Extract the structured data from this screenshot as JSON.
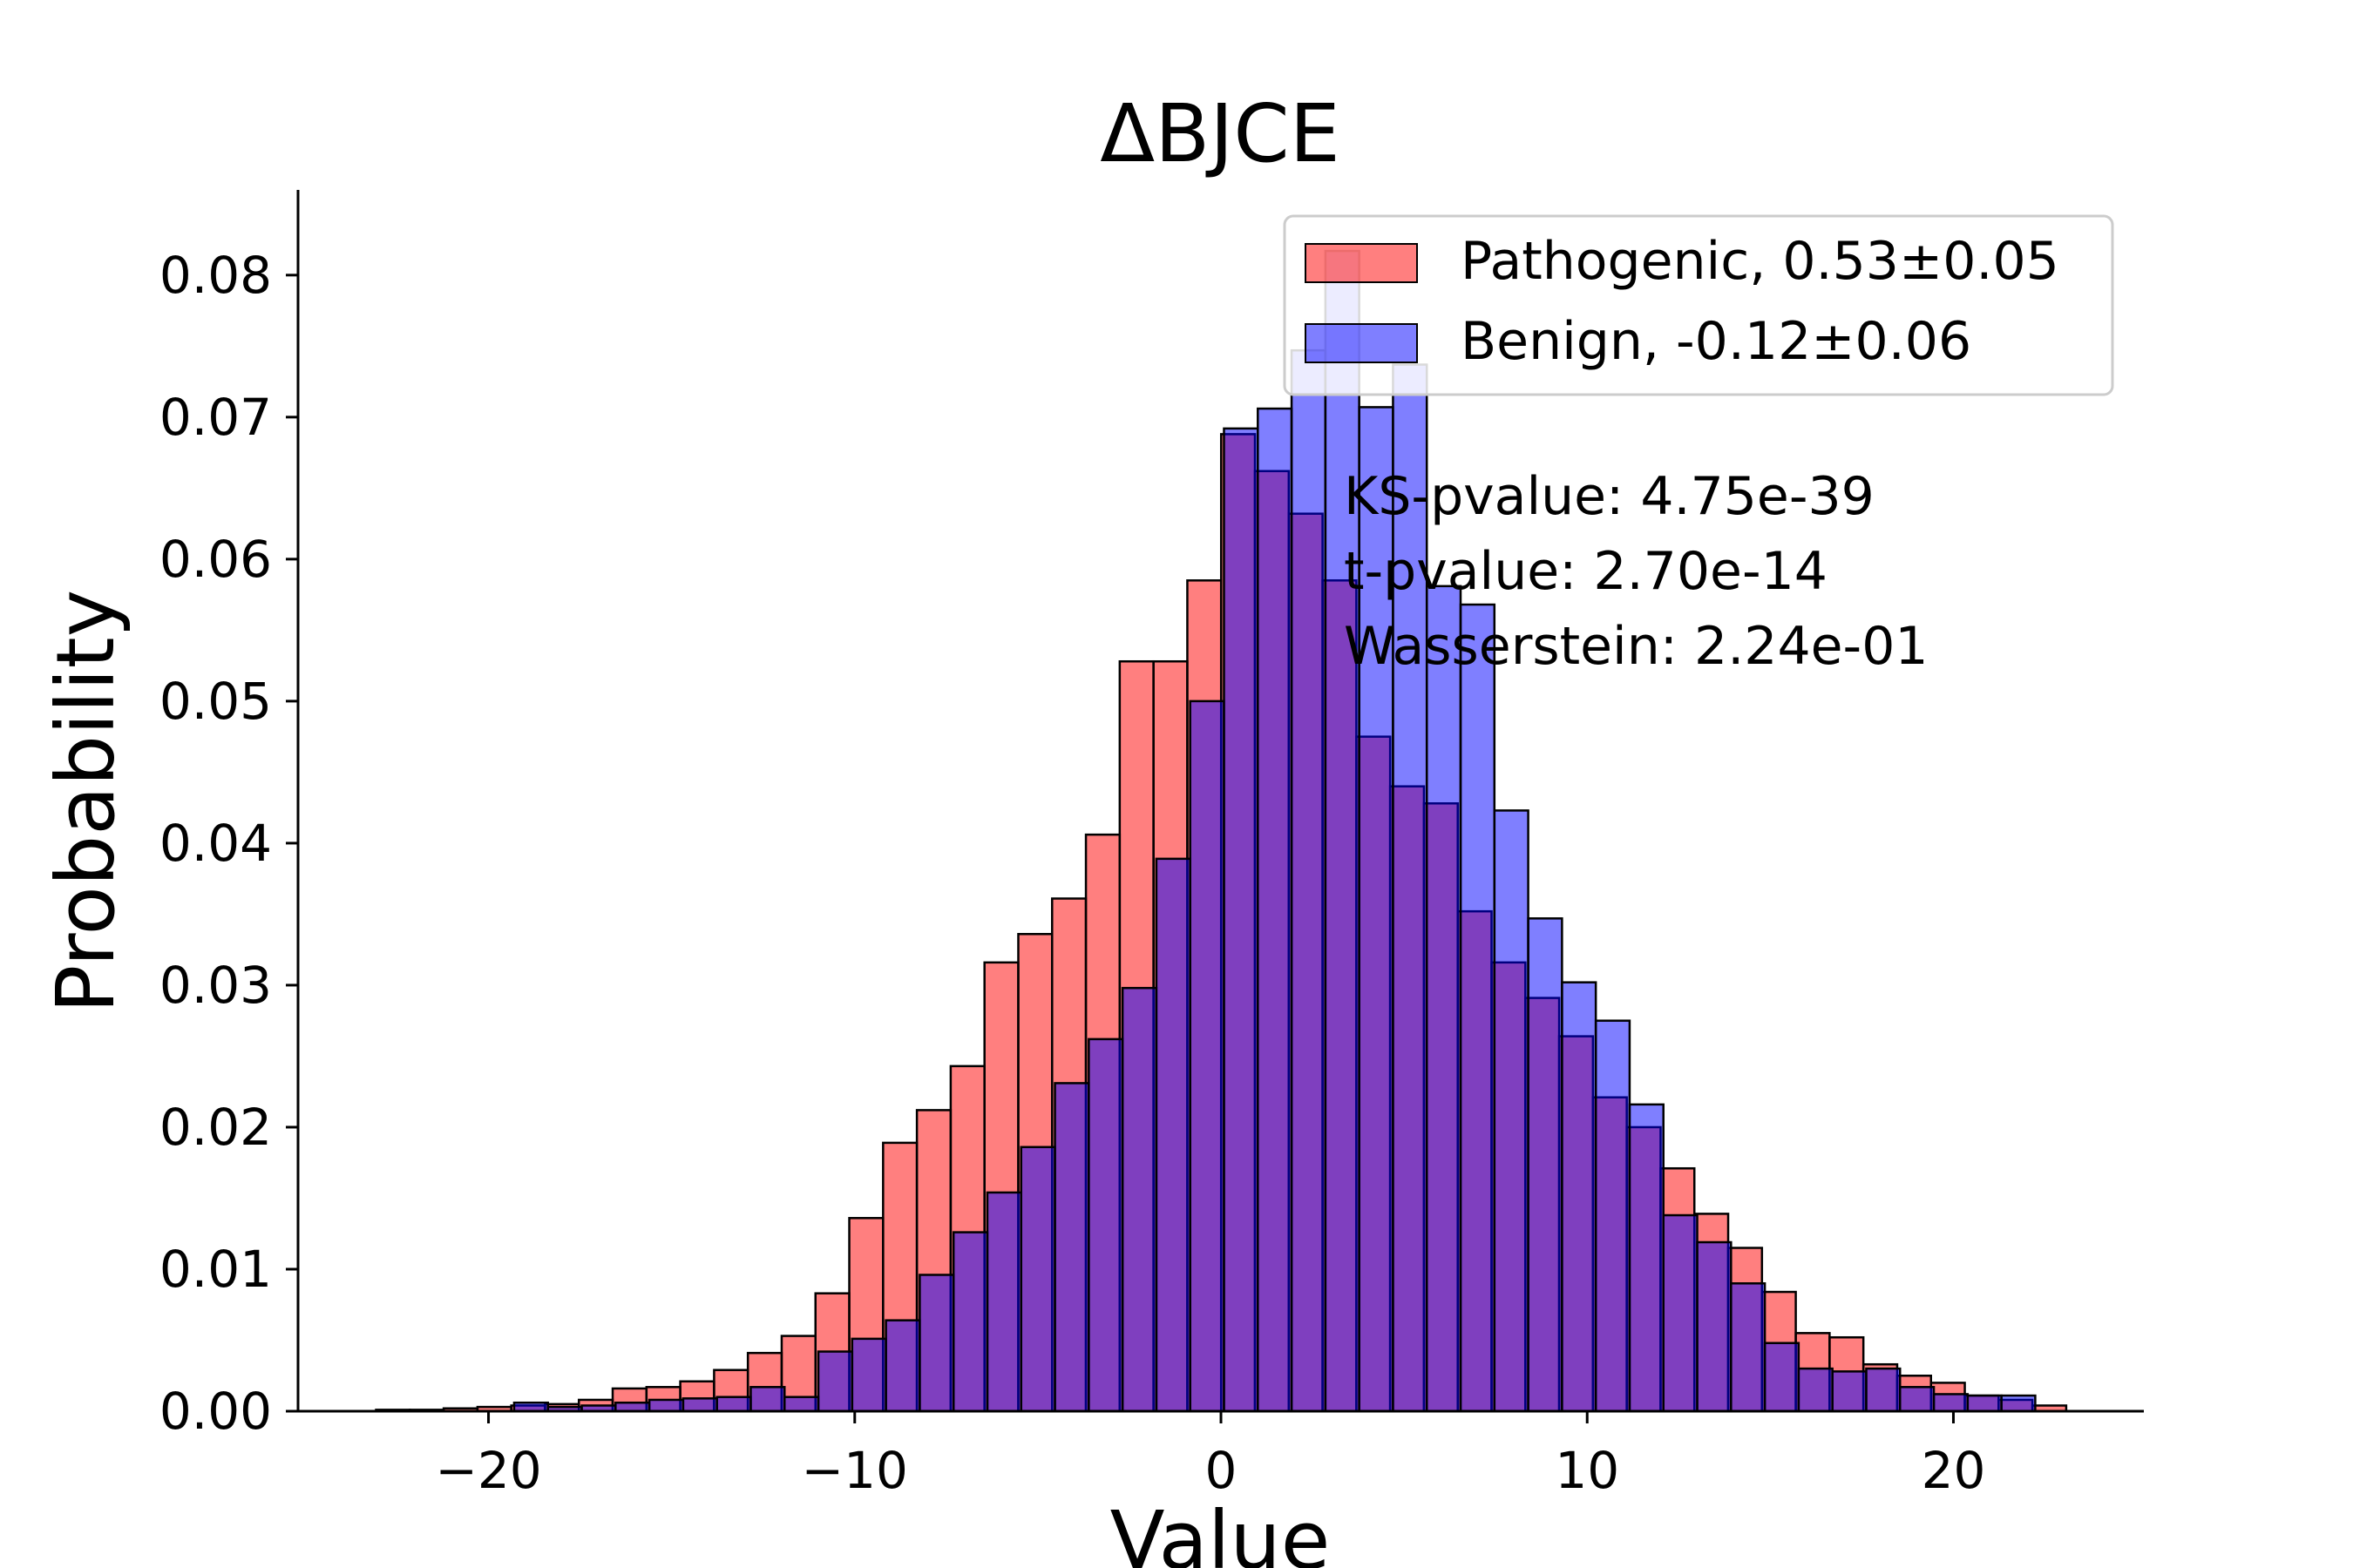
{
  "chart_data": {
    "type": "bar",
    "title": "ΔBJCE",
    "xlabel": "Value",
    "ylabel": "Probability",
    "xlim": [
      -25.2,
      25.2
    ],
    "ylim": [
      0,
      0.086
    ],
    "xticks": [
      -20,
      -10,
      0,
      10,
      20
    ],
    "xtick_labels": [
      "−20",
      "−10",
      "0",
      "10",
      "20"
    ],
    "yticks": [
      0,
      0.01,
      0.02,
      0.03,
      0.04,
      0.05,
      0.06,
      0.07,
      0.08
    ],
    "ytick_labels": [
      "0.00",
      "0.01",
      "0.02",
      "0.03",
      "0.04",
      "0.05",
      "0.06",
      "0.07",
      "0.08"
    ],
    "grid": false,
    "legend_position": "top-right",
    "annotations": [
      "KS-pvalue: 4.75e-39",
      "t-pvalue: 2.70e-14",
      "Wasserstein: 2.24e-01"
    ],
    "series": [
      {
        "name": "Pathogenic, 0.53±0.05",
        "color": "#ff0000",
        "opacity": 0.5,
        "bin_start": -23.07,
        "bin_width": 0.923,
        "values": [
          0.0001,
          0.0001,
          0.0002,
          0.0003,
          0.0004,
          0.0005,
          0.0008,
          0.0016,
          0.0017,
          0.0021,
          0.0029,
          0.0041,
          0.0053,
          0.0083,
          0.0136,
          0.0189,
          0.0212,
          0.0243,
          0.0316,
          0.0336,
          0.0361,
          0.0406,
          0.0528,
          0.0528,
          0.0585,
          0.0688,
          0.0662,
          0.0632,
          0.0585,
          0.0475,
          0.044,
          0.0428,
          0.0352,
          0.0316,
          0.0291,
          0.0264,
          0.0221,
          0.02,
          0.0171,
          0.0139,
          0.0115,
          0.0084,
          0.0055,
          0.0052,
          0.0033,
          0.0025,
          0.002,
          0.0011,
          0.0008,
          0.0004
        ]
      },
      {
        "name": "Benign, -0.12±0.06",
        "color": "#0000ff",
        "opacity": 0.5,
        "bin_start": -19.3,
        "bin_width": 0.923,
        "values": [
          0.0006,
          0.0003,
          0.0004,
          0.0006,
          0.0008,
          0.0009,
          0.001,
          0.0017,
          0.001,
          0.0042,
          0.0051,
          0.0064,
          0.0096,
          0.0126,
          0.0154,
          0.0186,
          0.0231,
          0.0262,
          0.0298,
          0.0389,
          0.05,
          0.0692,
          0.0706,
          0.0747,
          0.0817,
          0.0707,
          0.0737,
          0.0581,
          0.0568,
          0.0423,
          0.0347,
          0.0302,
          0.0275,
          0.0216,
          0.0138,
          0.0119,
          0.009,
          0.0048,
          0.003,
          0.0028,
          0.003,
          0.0017,
          0.0012,
          0.0011,
          0.0011
        ]
      }
    ]
  }
}
